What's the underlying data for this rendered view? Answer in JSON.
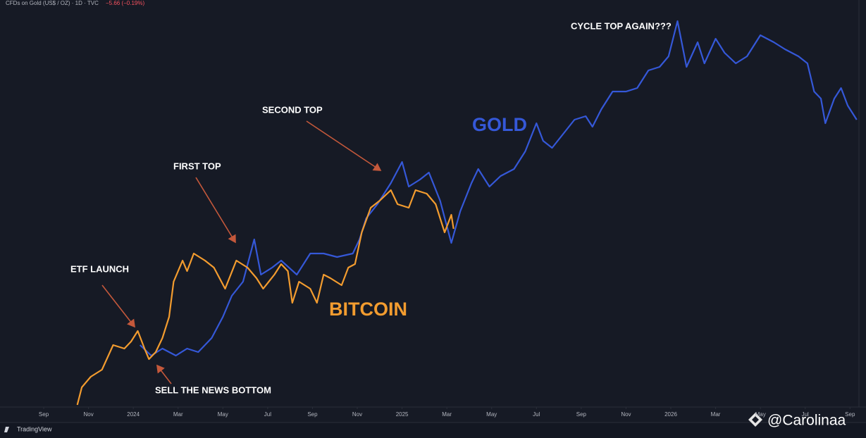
{
  "chart_data": {
    "type": "line",
    "title": "CFDs on Gold (US$ / OZ) · 1D · TVC",
    "change": "−5.66 (−0.19%)",
    "brand": "TradingView",
    "watermark": "@Carolinaa",
    "annotations": [
      "ETF LAUNCH",
      "FIRST TOP",
      "SECOND TOP",
      "CYCLE TOP AGAIN???",
      "SELL THE NEWS BOTTOM"
    ],
    "xlim": [
      7.3,
      45.4
    ],
    "ylim": [
      0,
      558
    ],
    "xticks": [
      {
        "value": 9,
        "label": "Sep"
      },
      {
        "value": 11,
        "label": "Nov"
      },
      {
        "value": 13,
        "label": "2024"
      },
      {
        "value": 15,
        "label": "Mar"
      },
      {
        "value": 17,
        "label": "May"
      },
      {
        "value": 19,
        "label": "Jul"
      },
      {
        "value": 21,
        "label": "Sep"
      },
      {
        "value": 23,
        "label": "Nov"
      },
      {
        "value": 25,
        "label": "2025"
      },
      {
        "value": 27,
        "label": "Mar"
      },
      {
        "value": 29,
        "label": "May"
      },
      {
        "value": 31,
        "label": "Jul"
      },
      {
        "value": 33,
        "label": "Sep"
      },
      {
        "value": 35,
        "label": "Nov"
      },
      {
        "value": 37,
        "label": "2026"
      },
      {
        "value": 39,
        "label": "Mar"
      },
      {
        "value": 41,
        "label": "May"
      },
      {
        "value": 43,
        "label": "Jul"
      },
      {
        "value": 45,
        "label": "Sep"
      }
    ],
    "series": [
      {
        "name": "GOLD",
        "color": "#3558d8",
        "x": [
          13.3,
          13.8,
          14.3,
          14.9,
          15.4,
          15.9,
          16.5,
          17.0,
          17.4,
          17.9,
          18.4,
          18.7,
          19.2,
          19.6,
          20.3,
          20.9,
          21.5,
          22.1,
          22.8,
          23.1,
          23.4,
          23.9,
          24.5,
          25.0,
          25.3,
          25.8,
          26.2,
          26.7,
          27.2,
          27.6,
          28.1,
          28.4,
          28.9,
          29.4,
          30.0,
          30.5,
          31.0,
          31.3,
          31.7,
          32.2,
          32.7,
          33.2,
          33.5,
          33.9,
          34.4,
          35.0,
          35.5,
          36.0,
          36.5,
          36.9,
          37.3,
          37.7,
          38.2,
          38.5,
          39.0,
          39.4,
          39.9,
          40.4,
          41.0,
          41.6,
          42.1,
          42.7,
          43.1,
          43.4,
          43.7,
          43.9,
          44.3,
          44.6,
          44.9,
          45.3
        ],
        "values": [
          88,
          73,
          83,
          73,
          83,
          78,
          98,
          128,
          158,
          178,
          238,
          188,
          198,
          208,
          188,
          218,
          218,
          213,
          218,
          238,
          268,
          288,
          318,
          348,
          313,
          323,
          333,
          293,
          233,
          278,
          318,
          338,
          313,
          328,
          338,
          363,
          403,
          378,
          368,
          388,
          408,
          413,
          398,
          423,
          448,
          448,
          453,
          478,
          483,
          498,
          548,
          483,
          518,
          488,
          523,
          503,
          488,
          498,
          528,
          518,
          508,
          498,
          488,
          448,
          438,
          403,
          438,
          453,
          428,
          408
        ]
      },
      {
        "name": "BITCOIN",
        "color": "#f39c2f",
        "x": [
          10.5,
          10.7,
          11.1,
          11.6,
          12.1,
          12.6,
          12.9,
          13.2,
          13.5,
          13.7,
          14.0,
          14.3,
          14.6,
          14.8,
          15.2,
          15.4,
          15.7,
          16.2,
          16.6,
          17.1,
          17.6,
          18.1,
          18.5,
          18.8,
          19.3,
          19.6,
          19.9,
          20.1,
          20.4,
          20.9,
          21.2,
          21.5,
          21.8,
          22.3,
          22.6,
          22.9,
          23.2,
          23.6,
          24.0,
          24.5,
          24.8,
          25.3,
          25.6,
          26.1,
          26.5,
          26.9,
          27.2,
          27.3
        ],
        "values": [
          3,
          28,
          43,
          53,
          88,
          83,
          93,
          108,
          83,
          68,
          78,
          98,
          128,
          178,
          208,
          193,
          218,
          208,
          198,
          168,
          208,
          198,
          183,
          168,
          188,
          203,
          193,
          148,
          178,
          168,
          148,
          188,
          183,
          173,
          198,
          203,
          248,
          283,
          293,
          308,
          288,
          283,
          308,
          303,
          288,
          248,
          273,
          253
        ]
      }
    ]
  }
}
